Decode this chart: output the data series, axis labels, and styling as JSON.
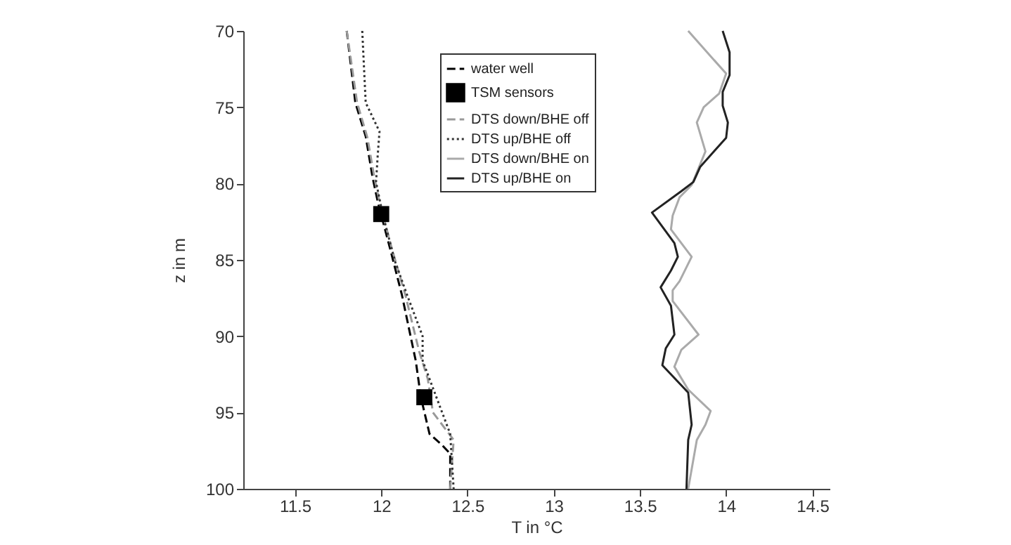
{
  "chart_data": {
    "type": "line",
    "xlabel": "T in °C",
    "ylabel": "z in m",
    "xlim": [
      11.2,
      14.6
    ],
    "ylim": [
      100,
      70
    ],
    "xticks": [
      11.5,
      12,
      12.5,
      13,
      13.5,
      14,
      14.5
    ],
    "yticks": [
      70,
      75,
      80,
      85,
      90,
      95,
      100
    ],
    "legend": "top",
    "grid": false,
    "series": [
      {
        "name": "water well",
        "type": "line",
        "color": "#000000",
        "line_style": "dashed",
        "x": [
          11.8,
          11.85,
          11.91,
          11.95,
          11.98,
          12.05,
          12.12,
          12.2,
          12.23,
          12.28,
          12.35,
          12.4,
          12.4
        ],
        "values": [
          70,
          74.7,
          76.9,
          79.6,
          81.2,
          84.2,
          87.3,
          91.6,
          94.0,
          96.4,
          97.1,
          97.7,
          100
        ]
      },
      {
        "name": "TSM sensors",
        "type": "scatter",
        "marker": "square",
        "color": "#000000",
        "x": [
          12.0,
          12.25
        ],
        "values": [
          82,
          94
        ]
      },
      {
        "name": "DTS down/BHE off",
        "type": "line",
        "color": "#999999",
        "line_style": "dashed",
        "x": [
          11.8,
          11.86,
          11.92,
          11.96,
          11.99,
          12.06,
          12.14,
          12.22,
          12.27,
          12.3,
          12.42,
          12.4
        ],
        "values": [
          70,
          74.7,
          77,
          79.6,
          81.2,
          84.2,
          87.3,
          91,
          92.8,
          95,
          96.8,
          100
        ]
      },
      {
        "name": "DTS up/BHE off",
        "type": "line",
        "color": "#333333",
        "line_style": "dotted",
        "x": [
          11.89,
          11.91,
          11.99,
          11.98,
          11.97,
          12.01,
          12.08,
          12.15,
          12.24,
          12.24,
          12.32,
          12.4,
          12.42
        ],
        "values": [
          70,
          74.7,
          76.6,
          78.1,
          79.9,
          82.1,
          85.1,
          87.3,
          90.0,
          91.6,
          94.0,
          96.4,
          100
        ]
      },
      {
        "name": "DTS down/BHE on",
        "type": "line",
        "color": "#aaaaaa",
        "line_style": "solid",
        "x": [
          13.78,
          14.0,
          13.96,
          13.87,
          13.83,
          13.88,
          13.8,
          13.73,
          13.69,
          13.68,
          13.8,
          13.73,
          13.69,
          13.69,
          13.84,
          13.74,
          13.7,
          13.78,
          13.91,
          13.88,
          13.83,
          13.78
        ],
        "values": [
          70,
          72.8,
          74.1,
          75.0,
          76.0,
          77.9,
          80.1,
          80.9,
          82.1,
          83.0,
          84.8,
          86.4,
          87.0,
          87.7,
          89.9,
          90.9,
          92.0,
          93.5,
          94.9,
          95.8,
          96.8,
          100
        ]
      },
      {
        "name": "DTS up/BHE on",
        "type": "line",
        "color": "#222222",
        "line_style": "solid",
        "x": [
          13.98,
          14.02,
          14.02,
          14.02,
          13.98,
          13.98,
          14.01,
          14.0,
          13.85,
          13.81,
          13.74,
          13.57,
          13.7,
          13.72,
          13.68,
          13.62,
          13.68,
          13.7,
          13.65,
          13.63,
          13.78,
          13.8,
          13.78,
          13.77
        ],
        "values": [
          70,
          71.4,
          72.1,
          72.9,
          74.0,
          74.9,
          76.0,
          77.0,
          78.9,
          79.9,
          80.5,
          81.9,
          83.9,
          84.8,
          85.7,
          86.8,
          88.0,
          89.9,
          90.8,
          91.9,
          93.7,
          95.8,
          96.8,
          100
        ]
      }
    ]
  }
}
